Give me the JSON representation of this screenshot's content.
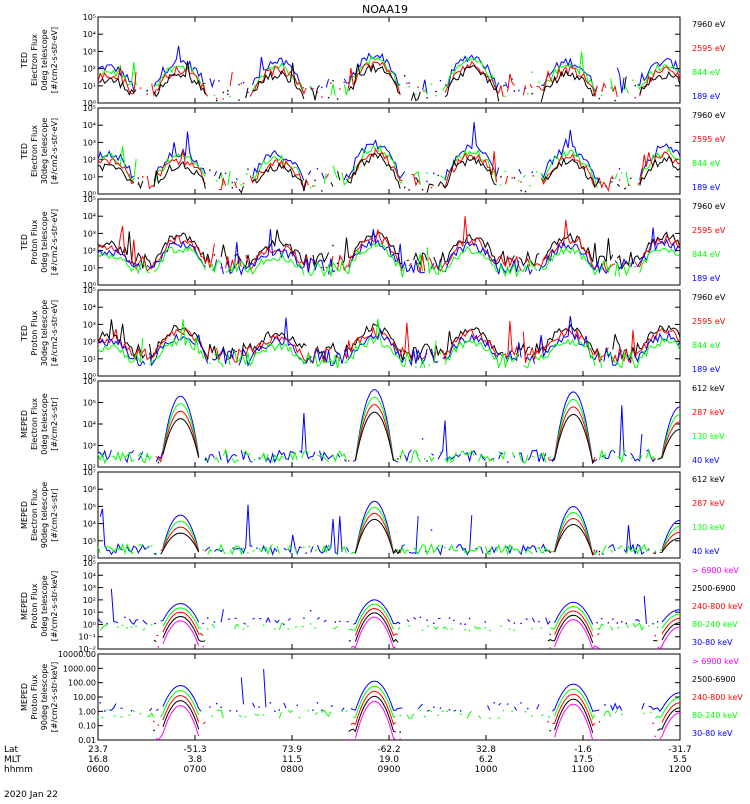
{
  "title": "NOAA19",
  "x_axis": {
    "rows": [
      {
        "label": "Lat",
        "values": [
          "23.7",
          "-51.3",
          "73.9",
          "-62.2",
          "32.8",
          "-1.6",
          "-31.7"
        ]
      },
      {
        "label": "MLT",
        "values": [
          "16.8",
          "3.8",
          "11.5",
          "19.0",
          "6.2",
          "17.5",
          "5.5"
        ]
      },
      {
        "label": "hhmm",
        "values": [
          "0600",
          "0700",
          "0800",
          "0900",
          "1000",
          "1100",
          "1200"
        ]
      }
    ],
    "date": "2020 Jan 22"
  },
  "colors": {
    "black": "#000000",
    "red": "#ff0000",
    "green": "#00ff00",
    "blue": "#0000ff",
    "magenta": "#ff00ff"
  },
  "chart_data": [
    {
      "type": "line",
      "ylabel": [
        "TED",
        "Electron Flux",
        "0deg telescope",
        "[#/cm2-s-str-eV]"
      ],
      "log_scale": true,
      "ylim_exp": [
        0,
        5
      ],
      "tick_labels": [
        "10⁰",
        "10¹",
        "10²",
        "10³",
        "10⁴",
        "10⁵"
      ],
      "legend": [
        {
          "label": "7960 eV",
          "color": "#000000"
        },
        {
          "label": "2595 eV",
          "color": "#ff0000"
        },
        {
          "label": "844 eV",
          "color": "#00ff00"
        },
        {
          "label": "189 eV",
          "color": "#0000ff"
        }
      ],
      "series_order": [
        "blue",
        "green",
        "red",
        "black"
      ],
      "blobs": [
        [
          0.1,
          1.7
        ],
        [
          0.85,
          2.0
        ],
        [
          1.85,
          2.0
        ],
        [
          2.85,
          2.4
        ],
        [
          3.85,
          2.3
        ],
        [
          4.85,
          2.0
        ],
        [
          5.85,
          2.0
        ]
      ],
      "mode": "ted"
    },
    {
      "type": "line",
      "ylabel": [
        "TED",
        "Electron Flux",
        "30deg telescope",
        "[#/cm2-s-str-eV]"
      ],
      "log_scale": true,
      "ylim_exp": [
        0,
        5
      ],
      "tick_labels": [
        "10⁰",
        "10¹",
        "10²",
        "10³",
        "10⁴",
        "10⁵"
      ],
      "legend": [
        {
          "label": "7960 eV",
          "color": "#000000"
        },
        {
          "label": "2595 eV",
          "color": "#ff0000"
        },
        {
          "label": "844 eV",
          "color": "#00ff00"
        },
        {
          "label": "189 eV",
          "color": "#0000ff"
        }
      ],
      "series_order": [
        "blue",
        "green",
        "red",
        "black"
      ],
      "blobs": [
        [
          0.1,
          2.0
        ],
        [
          0.85,
          2.0
        ],
        [
          1.85,
          1.9
        ],
        [
          2.85,
          2.5
        ],
        [
          3.85,
          2.3
        ],
        [
          4.85,
          2.2
        ],
        [
          5.85,
          2.3
        ]
      ],
      "mode": "ted"
    },
    {
      "type": "line",
      "ylabel": [
        "TED",
        "Proton Flux",
        "0deg telescope",
        "[#/cm2-s-str-eV]"
      ],
      "log_scale": true,
      "ylim_exp": [
        0,
        5
      ],
      "tick_labels": [
        "10⁰",
        "10¹",
        "10²",
        "10³",
        "10⁴",
        "10⁵"
      ],
      "legend": [
        {
          "label": "7960 eV",
          "color": "#000000"
        },
        {
          "label": "2595 eV",
          "color": "#ff0000"
        },
        {
          "label": "844 eV",
          "color": "#00ff00"
        },
        {
          "label": "189 eV",
          "color": "#0000ff"
        }
      ],
      "series_order": [
        "black",
        "red",
        "blue",
        "green"
      ],
      "blobs": [
        [
          0.1,
          2.0
        ],
        [
          0.85,
          2.5
        ],
        [
          1.85,
          2.0
        ],
        [
          2.85,
          2.6
        ],
        [
          3.85,
          2.4
        ],
        [
          4.85,
          2.4
        ],
        [
          5.85,
          2.5
        ]
      ],
      "mode": "tedp"
    },
    {
      "type": "line",
      "ylabel": [
        "TED",
        "Proton Flux",
        "30deg telescope",
        "[#/cm2-s-str-eV]"
      ],
      "log_scale": true,
      "ylim_exp": [
        0,
        5
      ],
      "tick_labels": [
        "10⁰",
        "10¹",
        "10²",
        "10³",
        "10⁴",
        "10⁵"
      ],
      "legend": [
        {
          "label": "7960 eV",
          "color": "#000000"
        },
        {
          "label": "2595 eV",
          "color": "#ff0000"
        },
        {
          "label": "844 eV",
          "color": "#00ff00"
        },
        {
          "label": "189 eV",
          "color": "#0000ff"
        }
      ],
      "series_order": [
        "black",
        "red",
        "blue",
        "green"
      ],
      "blobs": [
        [
          0.1,
          2.0
        ],
        [
          0.85,
          2.4
        ],
        [
          1.85,
          2.1
        ],
        [
          2.85,
          2.4
        ],
        [
          3.85,
          2.3
        ],
        [
          4.85,
          2.4
        ],
        [
          5.85,
          2.4
        ]
      ],
      "mode": "tedp"
    },
    {
      "type": "line",
      "ylabel": [
        "MEPED",
        "Electron Flux",
        "0deg telescope",
        "[#/cm2-s-str]"
      ],
      "log_scale": true,
      "ylim_exp": [
        2,
        6
      ],
      "tick_labels": [
        "10²",
        "10³",
        "10⁴",
        "10⁵",
        "10⁶"
      ],
      "legend": [
        {
          "label": "612 keV",
          "color": "#000000"
        },
        {
          "label": "287 keV",
          "color": "#ff0000"
        },
        {
          "label": "130 keV",
          "color": "#00ff00"
        },
        {
          "label": "40 keV",
          "color": "#0000ff"
        }
      ],
      "series_order": [
        "blue",
        "green",
        "red",
        "black"
      ],
      "blobs": [
        [
          0.85,
          5.3
        ],
        [
          2.85,
          5.6
        ],
        [
          4.9,
          5.5
        ],
        [
          6.0,
          4.8
        ]
      ],
      "mode": "mepede"
    },
    {
      "type": "line",
      "ylabel": [
        "MEPED",
        "Electron Flux",
        "90deg telescope",
        "[#/cm2-s-str]"
      ],
      "log_scale": true,
      "ylim_exp": [
        2,
        7
      ],
      "tick_labels": [
        "10²",
        "10³",
        "10⁴",
        "10⁵",
        "10⁶",
        "10⁷"
      ],
      "legend": [
        {
          "label": "612 keV",
          "color": "#000000"
        },
        {
          "label": "287 keV",
          "color": "#ff0000"
        },
        {
          "label": "130 keV",
          "color": "#00ff00"
        },
        {
          "label": "40 keV",
          "color": "#0000ff"
        }
      ],
      "series_order": [
        "blue",
        "green",
        "red",
        "black"
      ],
      "blobs": [
        [
          0.85,
          4.5
        ],
        [
          2.85,
          5.3
        ],
        [
          4.9,
          5.0
        ],
        [
          6.0,
          4.2
        ]
      ],
      "mode": "mepede"
    },
    {
      "type": "line",
      "ylabel": [
        "MEPED",
        "Proton Flux",
        "0deg telescope",
        "[#/cm2-s-str-keV]"
      ],
      "log_scale": true,
      "ylim_exp": [
        -2,
        5
      ],
      "tick_labels": [
        "10⁻²",
        "10⁻¹",
        "10⁰",
        "10¹",
        "10²",
        "10³",
        "10⁴",
        "10⁵"
      ],
      "legend": [
        {
          "label": "> 6900 keV",
          "color": "#ff00ff"
        },
        {
          "label": "2500-6900",
          "color": "#000000"
        },
        {
          "label": "240-800 keV",
          "color": "#ff0000"
        },
        {
          "label": "80-240 keV",
          "color": "#00ff00"
        },
        {
          "label": "30-80 keV",
          "color": "#0000ff"
        }
      ],
      "series_order": [
        "blue",
        "green",
        "red",
        "black",
        "magenta"
      ],
      "blobs": [
        [
          0.85,
          1.7
        ],
        [
          2.85,
          2.0
        ],
        [
          4.9,
          1.8
        ],
        [
          6.0,
          1.2
        ]
      ],
      "mode": "mepedp"
    },
    {
      "type": "line",
      "ylabel": [
        "MEPED",
        "Proton Flux",
        "90deg telescope",
        "[#/cm2-s-str-keV]"
      ],
      "log_scale": true,
      "ylim_exp": [
        -2,
        4
      ],
      "tick_labels": [
        "0.01",
        "0.10",
        "1.00",
        "10.00",
        "100.00",
        "1000.00",
        "10000.00"
      ],
      "legend": [
        {
          "label": "> 6900 keV",
          "color": "#ff00ff"
        },
        {
          "label": "2500-6900",
          "color": "#000000"
        },
        {
          "label": "240-800 keV",
          "color": "#ff0000"
        },
        {
          "label": "80-240 keV",
          "color": "#00ff00"
        },
        {
          "label": "30-80 keV",
          "color": "#0000ff"
        }
      ],
      "series_order": [
        "blue",
        "green",
        "red",
        "black",
        "magenta"
      ],
      "blobs": [
        [
          0.85,
          1.8
        ],
        [
          2.85,
          2.1
        ],
        [
          4.9,
          1.9
        ],
        [
          6.0,
          1.3
        ]
      ],
      "mode": "mepedp"
    }
  ]
}
